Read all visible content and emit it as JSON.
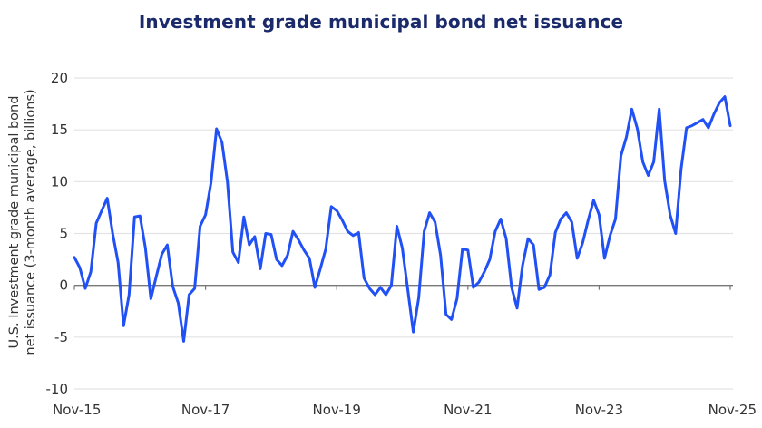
{
  "chart_data": {
    "type": "line",
    "title": "Investment grade municipal bond net issuance",
    "ylabel": [
      "U.S. Investment grade municipal bond",
      "net issuance (3-month average, billions)"
    ],
    "xlabel": "",
    "ylim": [
      -10,
      20
    ],
    "yticks": [
      -10,
      -5,
      0,
      5,
      10,
      15,
      20
    ],
    "xticks": [
      "Nov-15",
      "Nov-17",
      "Nov-19",
      "Nov-21",
      "Nov-23",
      "Nov-25"
    ],
    "grid": true,
    "line_color": "#2151f5",
    "x": [
      "2015-11",
      "2015-12",
      "2016-01",
      "2016-02",
      "2016-03",
      "2016-04",
      "2016-05",
      "2016-06",
      "2016-07",
      "2016-08",
      "2016-09",
      "2016-10",
      "2016-11",
      "2016-12",
      "2017-01",
      "2017-02",
      "2017-03",
      "2017-04",
      "2017-05",
      "2017-06",
      "2017-07",
      "2017-08",
      "2017-09",
      "2017-10",
      "2017-11",
      "2017-12",
      "2018-01",
      "2018-02",
      "2018-03",
      "2018-04",
      "2018-05",
      "2018-06",
      "2018-07",
      "2018-08",
      "2018-09",
      "2018-10",
      "2018-11",
      "2018-12",
      "2019-01",
      "2019-02",
      "2019-03",
      "2019-04",
      "2019-05",
      "2019-06",
      "2019-07",
      "2019-08",
      "2019-09",
      "2019-10",
      "2019-11",
      "2019-12",
      "2020-01",
      "2020-02",
      "2020-03",
      "2020-04",
      "2020-05",
      "2020-06",
      "2020-07",
      "2020-08",
      "2020-09",
      "2020-10",
      "2020-11",
      "2020-12",
      "2021-01",
      "2021-02",
      "2021-03",
      "2021-04",
      "2021-05",
      "2021-06",
      "2021-07",
      "2021-08",
      "2021-09",
      "2021-10",
      "2021-11",
      "2021-12",
      "2022-01",
      "2022-02",
      "2022-03",
      "2022-04",
      "2022-05",
      "2022-06",
      "2022-07",
      "2022-08",
      "2022-09",
      "2022-10",
      "2022-11",
      "2022-12",
      "2023-01",
      "2023-02",
      "2023-03",
      "2023-04",
      "2023-05",
      "2023-06",
      "2023-07",
      "2023-08",
      "2023-09",
      "2023-10",
      "2023-11",
      "2023-12",
      "2024-01",
      "2024-02",
      "2024-03",
      "2024-04",
      "2024-05",
      "2024-06",
      "2024-07",
      "2024-08",
      "2024-09",
      "2024-10",
      "2024-11",
      "2024-12",
      "2025-01",
      "2025-02",
      "2025-03",
      "2025-04",
      "2025-05",
      "2025-06",
      "2025-07",
      "2025-08",
      "2025-09",
      "2025-10",
      "2025-11"
    ],
    "series": [
      {
        "values": [
          2.7,
          1.7,
          -0.3,
          1.3,
          6.0,
          7.2,
          8.4,
          5.0,
          2.2,
          -3.9,
          -0.9,
          6.6,
          6.7,
          3.6,
          -1.3,
          0.9,
          3.0,
          3.9,
          -0.1,
          -1.7,
          -5.4,
          -0.9,
          -0.3,
          5.7,
          6.8,
          9.9,
          15.1,
          13.8,
          10.0,
          3.2,
          2.2,
          6.6,
          3.9,
          4.7,
          1.6,
          5.0,
          4.9,
          2.5,
          1.9,
          2.9,
          5.2,
          4.4,
          3.4,
          2.6,
          -0.2,
          1.6,
          3.5,
          7.6,
          7.2,
          6.3,
          5.2,
          4.8,
          5.1,
          0.7,
          -0.3,
          -0.9,
          -0.2,
          -0.9,
          0.0,
          5.7,
          3.6,
          -0.4,
          -4.5,
          -1.2,
          5.2,
          7.0,
          6.1,
          2.9,
          -2.8,
          -3.3,
          -1.3,
          3.5,
          3.4,
          -0.2,
          0.3,
          1.3,
          2.5,
          5.2,
          6.4,
          4.5,
          -0.2,
          -2.2,
          1.9,
          4.5,
          3.9,
          -0.4,
          -0.2,
          1.0,
          5.1,
          6.4,
          7.0,
          6.1,
          2.6,
          4.1,
          6.3,
          8.2,
          6.8,
          2.6,
          4.8,
          6.4,
          12.5,
          14.3,
          17.0,
          15.1,
          11.9,
          10.6,
          11.9,
          17.0,
          10.1,
          6.8,
          5.0,
          11.2,
          15.2,
          15.4,
          15.7,
          16.0,
          15.2,
          16.5,
          17.6,
          18.2,
          15.4
        ]
      }
    ]
  }
}
